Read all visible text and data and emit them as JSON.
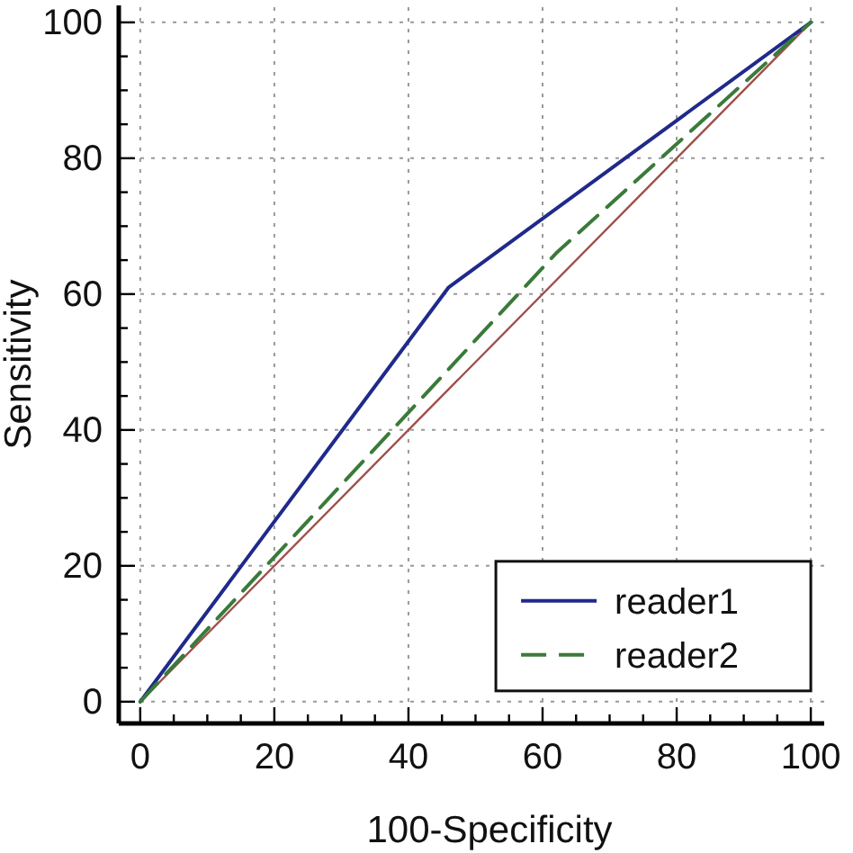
{
  "chart_data": {
    "type": "line",
    "xlabel": "100-Specificity",
    "ylabel": "Sensitivity",
    "xlim": [
      -3.2,
      102
    ],
    "ylim": [
      -3.2,
      102.5
    ],
    "xticks": [
      0,
      {
        "value": 5,
        "label": null
      },
      {
        "value": 10,
        "label": null
      },
      {
        "value": 15,
        "label": null
      },
      20,
      {
        "value": 25,
        "label": null
      },
      {
        "value": 30,
        "label": null
      },
      {
        "value": 35,
        "label": null
      },
      40,
      {
        "value": 45,
        "label": null
      },
      {
        "value": 50,
        "label": null
      },
      {
        "value": 55,
        "label": null
      },
      60,
      {
        "value": 65,
        "label": null
      },
      {
        "value": 70,
        "label": null
      },
      {
        "value": 75,
        "label": null
      },
      80,
      {
        "value": 85,
        "label": null
      },
      {
        "value": 90,
        "label": null
      },
      {
        "value": 95,
        "label": null
      },
      100
    ],
    "yticks": [
      0,
      {
        "value": 5,
        "label": null
      },
      {
        "value": 10,
        "label": null
      },
      {
        "value": 15,
        "label": null
      },
      20,
      {
        "value": 25,
        "label": null
      },
      {
        "value": 30,
        "label": null
      },
      {
        "value": 35,
        "label": null
      },
      40,
      {
        "value": 45,
        "label": null
      },
      {
        "value": 50,
        "label": null
      },
      {
        "value": 55,
        "label": null
      },
      60,
      {
        "value": 65,
        "label": null
      },
      {
        "value": 70,
        "label": null
      },
      {
        "value": 75,
        "label": null
      },
      80,
      {
        "value": 85,
        "label": null
      },
      {
        "value": 90,
        "label": null
      },
      {
        "value": 95,
        "label": null
      },
      100
    ],
    "grid": true,
    "legend": "bottom right",
    "series": [
      {
        "color": "#a0504a",
        "x": [
          0,
          100
        ],
        "values": [
          0,
          100
        ],
        "line_style": "solid"
      },
      {
        "name": "reader1",
        "color": "#1f2a8a",
        "x": [
          0,
          46,
          100
        ],
        "values": [
          0,
          61,
          100
        ],
        "line_style": "solid"
      },
      {
        "name": "reader2",
        "color": "#3a7a3a",
        "x": [
          0,
          62,
          100
        ],
        "values": [
          0,
          66,
          100
        ],
        "line_style": "dashed"
      }
    ]
  }
}
